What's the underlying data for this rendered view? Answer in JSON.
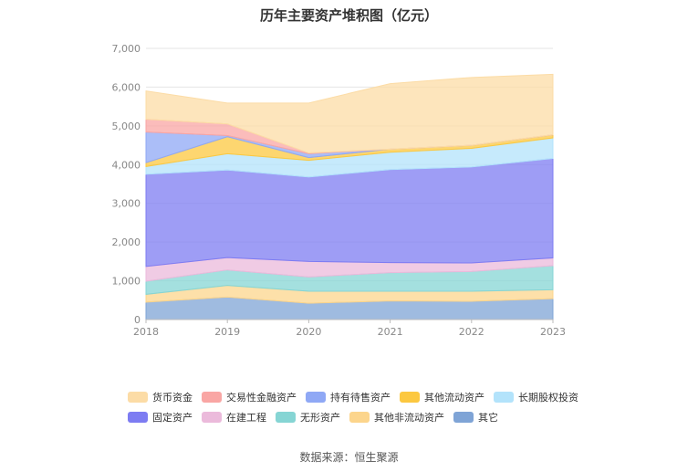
{
  "chart_data": {
    "type": "area",
    "title": "历年主要资产堆积图（亿元）",
    "x": [
      "2018",
      "2019",
      "2020",
      "2021",
      "2022",
      "2023"
    ],
    "ylim": [
      0,
      7000
    ],
    "yticks": [
      "0",
      "1,000",
      "2,000",
      "3,000",
      "4,000",
      "5,000",
      "6,000",
      "7,000"
    ],
    "grid": true,
    "legend_position": "bottom",
    "series": [
      {
        "name": "其它",
        "color": "#7fa4d6",
        "values": [
          450,
          580,
          420,
          480,
          470,
          540
        ]
      },
      {
        "name": "其他非流动资产",
        "color": "#fcd58c",
        "values": [
          200,
          300,
          310,
          250,
          260,
          230
        ]
      },
      {
        "name": "无形资产",
        "color": "#86d5d4",
        "values": [
          340,
          400,
          370,
          480,
          510,
          620
        ]
      },
      {
        "name": "在建工程",
        "color": "#ebbadb",
        "values": [
          380,
          320,
          400,
          260,
          220,
          200
        ]
      },
      {
        "name": "固定资产",
        "color": "#7d7cf2",
        "values": [
          2380,
          2260,
          2180,
          2400,
          2480,
          2570
        ]
      },
      {
        "name": "长期股权投资",
        "color": "#b3e3fb",
        "values": [
          200,
          420,
          430,
          450,
          480,
          530
        ]
      },
      {
        "name": "其他流动资产",
        "color": "#fcc840",
        "values": [
          100,
          440,
          70,
          80,
          80,
          80
        ]
      },
      {
        "name": "持有待售资产",
        "color": "#8fa8f5",
        "values": [
          790,
          30,
          100,
          0,
          0,
          0
        ]
      },
      {
        "name": "交易性金融资产",
        "color": "#f9a6a4",
        "values": [
          330,
          300,
          20,
          0,
          0,
          0
        ]
      },
      {
        "name": "货币资金",
        "color": "#fcdca6",
        "values": [
          730,
          540,
          1290,
          1690,
          1750,
          1560
        ]
      }
    ],
    "legend_order": [
      "货币资金",
      "交易性金融资产",
      "持有待售资产",
      "其他流动资产",
      "长期股权投资",
      "固定资产",
      "在建工程",
      "无形资产",
      "其他非流动资产",
      "其它"
    ]
  },
  "source": "数据来源：恒生聚源"
}
